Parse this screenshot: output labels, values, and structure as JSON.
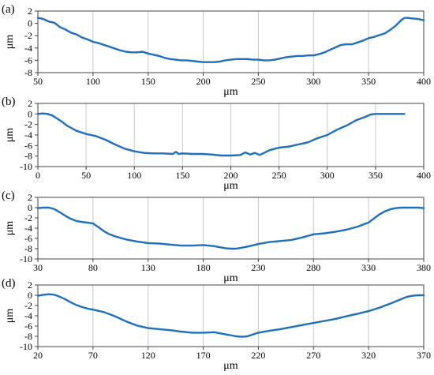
{
  "chart_data": [
    {
      "panel_label": "(a)",
      "type": "line",
      "xlabel": "μm",
      "ylabel": "μm",
      "xlim": [
        50,
        400
      ],
      "ylim": [
        -8,
        2
      ],
      "xticks": [
        50,
        100,
        150,
        200,
        250,
        300,
        350,
        400
      ],
      "yticks": [
        2,
        0,
        -2,
        -4,
        -6,
        -8
      ],
      "grid": "vertical",
      "color": "#1f6fbf",
      "series": [
        {
          "x": [
            50,
            55,
            60,
            65,
            70,
            75,
            80,
            85,
            90,
            95,
            100,
            105,
            110,
            115,
            120,
            125,
            130,
            135,
            140,
            145,
            150,
            155,
            160,
            165,
            170,
            175,
            180,
            185,
            190,
            195,
            200,
            205,
            210,
            215,
            220,
            225,
            230,
            235,
            240,
            245,
            250,
            255,
            260,
            265,
            270,
            275,
            280,
            285,
            290,
            295,
            300,
            305,
            310,
            315,
            320,
            325,
            330,
            335,
            340,
            345,
            350,
            355,
            360,
            365,
            370,
            375,
            380,
            383,
            385,
            390,
            395,
            400
          ],
          "y": [
            0.9,
            0.7,
            0.3,
            0.1,
            -0.6,
            -1.0,
            -1.5,
            -1.8,
            -2.3,
            -2.6,
            -3.0,
            -3.2,
            -3.5,
            -3.8,
            -4.1,
            -4.4,
            -4.6,
            -4.7,
            -4.7,
            -4.6,
            -4.9,
            -5.1,
            -5.3,
            -5.6,
            -5.8,
            -5.9,
            -6.0,
            -6.0,
            -6.1,
            -6.2,
            -6.3,
            -6.3,
            -6.3,
            -6.2,
            -6.0,
            -5.9,
            -5.8,
            -5.8,
            -5.8,
            -5.9,
            -5.9,
            -6.0,
            -6.0,
            -5.9,
            -5.7,
            -5.5,
            -5.4,
            -5.3,
            -5.3,
            -5.2,
            -5.2,
            -5.0,
            -4.7,
            -4.3,
            -3.9,
            -3.5,
            -3.4,
            -3.4,
            -3.1,
            -2.8,
            -2.4,
            -2.2,
            -1.9,
            -1.6,
            -1.0,
            -0.3,
            0.6,
            0.9,
            0.9,
            0.8,
            0.7,
            0.5
          ]
        }
      ]
    },
    {
      "panel_label": "(b)",
      "type": "line",
      "xlabel": "μm",
      "ylabel": "μm",
      "xlim": [
        0,
        400
      ],
      "ylim": [
        -10,
        2
      ],
      "xticks": [
        0,
        50,
        100,
        150,
        200,
        250,
        300,
        350,
        400
      ],
      "yticks": [
        2,
        0,
        -2,
        -4,
        -6,
        -8,
        -10
      ],
      "grid": "vertical",
      "color": "#1f6fbf",
      "series": [
        {
          "x": [
            0,
            5,
            10,
            15,
            20,
            25,
            30,
            40,
            50,
            60,
            70,
            80,
            90,
            100,
            110,
            120,
            130,
            140,
            143,
            146,
            150,
            160,
            170,
            180,
            190,
            200,
            210,
            215,
            220,
            225,
            230,
            240,
            250,
            260,
            270,
            280,
            290,
            300,
            310,
            320,
            330,
            340,
            345,
            350,
            360,
            370,
            380
          ],
          "y": [
            0.0,
            0.1,
            0.0,
            -0.3,
            -0.9,
            -1.5,
            -2.2,
            -3.2,
            -3.8,
            -4.2,
            -4.9,
            -5.8,
            -6.6,
            -7.1,
            -7.4,
            -7.5,
            -7.5,
            -7.6,
            -7.2,
            -7.6,
            -7.5,
            -7.6,
            -7.6,
            -7.7,
            -7.9,
            -7.9,
            -7.8,
            -7.3,
            -7.7,
            -7.4,
            -7.8,
            -6.9,
            -6.4,
            -6.2,
            -5.8,
            -5.4,
            -4.6,
            -4.0,
            -3.0,
            -2.2,
            -1.2,
            -0.5,
            -0.1,
            0.0,
            0.0,
            0.0,
            0.0
          ]
        }
      ]
    },
    {
      "panel_label": "(c)",
      "type": "line",
      "xlabel": "μm",
      "ylabel": "μm",
      "xlim": [
        30,
        380
      ],
      "ylim": [
        -10,
        2
      ],
      "xticks": [
        30,
        80,
        130,
        180,
        230,
        280,
        330,
        380
      ],
      "yticks": [
        2,
        0,
        -2,
        -4,
        -6,
        -8,
        -10
      ],
      "grid": "vertical",
      "color": "#1f6fbf",
      "series": [
        {
          "x": [
            30,
            35,
            40,
            45,
            50,
            55,
            60,
            65,
            70,
            75,
            80,
            85,
            90,
            95,
            100,
            110,
            120,
            130,
            140,
            150,
            160,
            170,
            180,
            190,
            200,
            205,
            210,
            215,
            220,
            230,
            240,
            250,
            260,
            270,
            280,
            290,
            300,
            310,
            320,
            325,
            330,
            335,
            340,
            345,
            350,
            355,
            360,
            365,
            370,
            375,
            380
          ],
          "y": [
            -0.1,
            0.0,
            0.0,
            -0.3,
            -0.9,
            -1.6,
            -2.2,
            -2.6,
            -2.8,
            -2.9,
            -3.1,
            -3.8,
            -4.6,
            -5.2,
            -5.6,
            -6.2,
            -6.6,
            -6.9,
            -7.0,
            -7.2,
            -7.4,
            -7.4,
            -7.3,
            -7.5,
            -7.9,
            -8.0,
            -8.0,
            -7.8,
            -7.6,
            -7.1,
            -6.7,
            -6.5,
            -6.3,
            -5.8,
            -5.2,
            -5.0,
            -4.7,
            -4.3,
            -3.7,
            -3.3,
            -2.9,
            -2.1,
            -1.3,
            -0.7,
            -0.3,
            -0.1,
            0.0,
            0.0,
            0.0,
            0.0,
            -0.1
          ]
        }
      ]
    },
    {
      "panel_label": "(d)",
      "type": "line",
      "xlabel": "μm",
      "ylabel": "μm",
      "xlim": [
        20,
        370
      ],
      "ylim": [
        -10,
        2
      ],
      "xticks": [
        20,
        70,
        120,
        170,
        220,
        270,
        320,
        370
      ],
      "yticks": [
        2,
        0,
        -2,
        -4,
        -6,
        -8,
        -10
      ],
      "grid": "vertical",
      "color": "#1f6fbf",
      "series": [
        {
          "x": [
            20,
            25,
            30,
            35,
            40,
            45,
            50,
            55,
            60,
            65,
            70,
            80,
            90,
            100,
            110,
            120,
            130,
            140,
            150,
            160,
            170,
            180,
            190,
            200,
            205,
            210,
            220,
            230,
            240,
            250,
            260,
            270,
            280,
            290,
            300,
            310,
            320,
            330,
            340,
            350,
            355,
            360,
            365,
            370
          ],
          "y": [
            -0.1,
            0.1,
            0.2,
            0.1,
            -0.3,
            -0.8,
            -1.4,
            -1.9,
            -2.3,
            -2.6,
            -2.8,
            -3.3,
            -4.1,
            -5.1,
            -5.9,
            -6.4,
            -6.6,
            -6.8,
            -7.1,
            -7.3,
            -7.3,
            -7.2,
            -7.6,
            -8.0,
            -8.1,
            -8.0,
            -7.3,
            -6.9,
            -6.6,
            -6.2,
            -5.8,
            -5.4,
            -5.0,
            -4.6,
            -4.1,
            -3.6,
            -3.1,
            -2.4,
            -1.6,
            -0.7,
            -0.3,
            -0.1,
            0.0,
            0.0
          ]
        }
      ]
    }
  ]
}
